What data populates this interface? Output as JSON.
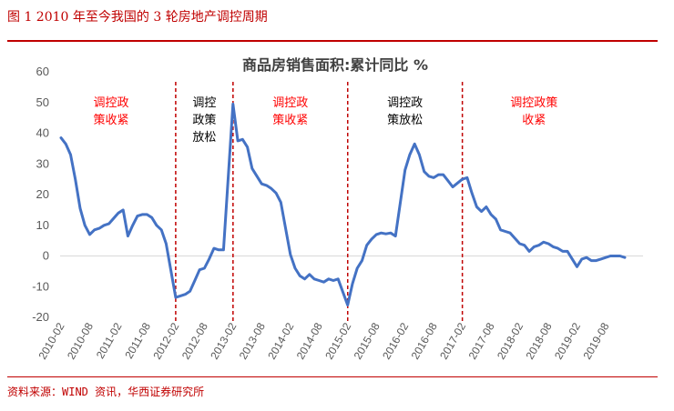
{
  "caption": "图 1   2010 年至今我国的 3 轮房地产调控周期",
  "source": "资料来源：WIND 资讯，华西证券研究所",
  "colors": {
    "line": "#4472c4",
    "accent": "#c00000",
    "tighten": "#ff0000",
    "loosen": "#000000"
  },
  "chart_data": {
    "type": "line",
    "title": "商品房销售面积:累计同比 %",
    "ylim": [
      -20,
      60
    ],
    "yticks": [
      60,
      50,
      40,
      30,
      20,
      10,
      0,
      -10,
      -20
    ],
    "x_tick_labels": [
      "2010-02",
      "2010-08",
      "2011-02",
      "2011-08",
      "2012-02",
      "2012-08",
      "2013-02",
      "2013-08",
      "2014-02",
      "2014-08",
      "2015-02",
      "2015-08",
      "2016-02",
      "2016-08",
      "2017-02",
      "2017-08",
      "2018-02",
      "2018-08",
      "2019-02",
      "2019-08"
    ],
    "grid": false,
    "series": [
      {
        "values": [
          {
            "x": "2010-02",
            "y": 38.5
          },
          {
            "x": "2010-03",
            "y": 36.5
          },
          {
            "x": "2010-04",
            "y": 33.0
          },
          {
            "x": "2010-05",
            "y": 25.0
          },
          {
            "x": "2010-06",
            "y": 15.5
          },
          {
            "x": "2010-07",
            "y": 10.0
          },
          {
            "x": "2010-08",
            "y": 7.0
          },
          {
            "x": "2010-09",
            "y": 8.5
          },
          {
            "x": "2010-10",
            "y": 9.0
          },
          {
            "x": "2010-11",
            "y": 10.0
          },
          {
            "x": "2010-12",
            "y": 10.5
          },
          {
            "x": "2011-02",
            "y": 14.0
          },
          {
            "x": "2011-03",
            "y": 15.0
          },
          {
            "x": "2011-04",
            "y": 6.5
          },
          {
            "x": "2011-05",
            "y": 10.0
          },
          {
            "x": "2011-06",
            "y": 13.0
          },
          {
            "x": "2011-07",
            "y": 13.5
          },
          {
            "x": "2011-08",
            "y": 13.5
          },
          {
            "x": "2011-09",
            "y": 12.5
          },
          {
            "x": "2011-10",
            "y": 10.0
          },
          {
            "x": "2011-11",
            "y": 8.5
          },
          {
            "x": "2011-12",
            "y": 4.0
          },
          {
            "x": "2012-02",
            "y": -13.5
          },
          {
            "x": "2012-03",
            "y": -13.0
          },
          {
            "x": "2012-04",
            "y": -12.5
          },
          {
            "x": "2012-05",
            "y": -11.5
          },
          {
            "x": "2012-06",
            "y": -8.0
          },
          {
            "x": "2012-07",
            "y": -4.5
          },
          {
            "x": "2012-08",
            "y": -4.0
          },
          {
            "x": "2012-09",
            "y": -1.0
          },
          {
            "x": "2012-10",
            "y": 2.5
          },
          {
            "x": "2012-11",
            "y": 2.0
          },
          {
            "x": "2012-12",
            "y": 2.0
          },
          {
            "x": "2013-02",
            "y": 49.5
          },
          {
            "x": "2013-03",
            "y": 37.5
          },
          {
            "x": "2013-04",
            "y": 38.0
          },
          {
            "x": "2013-05",
            "y": 35.5
          },
          {
            "x": "2013-06",
            "y": 28.5
          },
          {
            "x": "2013-07",
            "y": 26.0
          },
          {
            "x": "2013-08",
            "y": 23.5
          },
          {
            "x": "2013-09",
            "y": 23.0
          },
          {
            "x": "2013-10",
            "y": 22.0
          },
          {
            "x": "2013-11",
            "y": 20.5
          },
          {
            "x": "2013-12",
            "y": 17.5
          },
          {
            "x": "2014-02",
            "y": 0.5
          },
          {
            "x": "2014-03",
            "y": -4.0
          },
          {
            "x": "2014-04",
            "y": -6.5
          },
          {
            "x": "2014-05",
            "y": -7.5
          },
          {
            "x": "2014-06",
            "y": -6.0
          },
          {
            "x": "2014-07",
            "y": -7.5
          },
          {
            "x": "2014-08",
            "y": -8.0
          },
          {
            "x": "2014-09",
            "y": -8.5
          },
          {
            "x": "2014-10",
            "y": -7.5
          },
          {
            "x": "2014-11",
            "y": -8.0
          },
          {
            "x": "2014-12",
            "y": -7.5
          },
          {
            "x": "2015-02",
            "y": -16.0
          },
          {
            "x": "2015-03",
            "y": -9.0
          },
          {
            "x": "2015-04",
            "y": -4.0
          },
          {
            "x": "2015-05",
            "y": -1.5
          },
          {
            "x": "2015-06",
            "y": 3.5
          },
          {
            "x": "2015-07",
            "y": 5.5
          },
          {
            "x": "2015-08",
            "y": 7.0
          },
          {
            "x": "2015-09",
            "y": 7.5
          },
          {
            "x": "2015-10",
            "y": 7.2
          },
          {
            "x": "2015-11",
            "y": 7.5
          },
          {
            "x": "2015-12",
            "y": 6.5
          },
          {
            "x": "2016-02",
            "y": 28.0
          },
          {
            "x": "2016-03",
            "y": 33.0
          },
          {
            "x": "2016-04",
            "y": 36.5
          },
          {
            "x": "2016-05",
            "y": 33.0
          },
          {
            "x": "2016-06",
            "y": 27.5
          },
          {
            "x": "2016-07",
            "y": 26.0
          },
          {
            "x": "2016-08",
            "y": 25.5
          },
          {
            "x": "2016-09",
            "y": 26.5
          },
          {
            "x": "2016-10",
            "y": 26.5
          },
          {
            "x": "2016-11",
            "y": 24.5
          },
          {
            "x": "2016-12",
            "y": 22.5
          },
          {
            "x": "2017-02",
            "y": 25.0
          },
          {
            "x": "2017-03",
            "y": 25.5
          },
          {
            "x": "2017-04",
            "y": 20.5
          },
          {
            "x": "2017-05",
            "y": 16.0
          },
          {
            "x": "2017-06",
            "y": 14.5
          },
          {
            "x": "2017-07",
            "y": 16.0
          },
          {
            "x": "2017-08",
            "y": 13.5
          },
          {
            "x": "2017-09",
            "y": 12.0
          },
          {
            "x": "2017-10",
            "y": 8.5
          },
          {
            "x": "2017-11",
            "y": 8.0
          },
          {
            "x": "2017-12",
            "y": 7.5
          },
          {
            "x": "2018-02",
            "y": 4.0
          },
          {
            "x": "2018-03",
            "y": 3.5
          },
          {
            "x": "2018-04",
            "y": 1.5
          },
          {
            "x": "2018-05",
            "y": 3.0
          },
          {
            "x": "2018-06",
            "y": 3.5
          },
          {
            "x": "2018-07",
            "y": 4.5
          },
          {
            "x": "2018-08",
            "y": 4.0
          },
          {
            "x": "2018-09",
            "y": 3.0
          },
          {
            "x": "2018-10",
            "y": 2.5
          },
          {
            "x": "2018-11",
            "y": 1.5
          },
          {
            "x": "2018-12",
            "y": 1.5
          },
          {
            "x": "2019-02",
            "y": -3.5
          },
          {
            "x": "2019-03",
            "y": -1.0
          },
          {
            "x": "2019-04",
            "y": -0.5
          },
          {
            "x": "2019-05",
            "y": -1.5
          },
          {
            "x": "2019-06",
            "y": -1.5
          },
          {
            "x": "2019-07",
            "y": -1.0
          },
          {
            "x": "2019-08",
            "y": -0.5
          },
          {
            "x": "2019-09",
            "y": 0.0
          },
          {
            "x": "2019-10",
            "y": 0.0
          },
          {
            "x": "2019-11",
            "y": 0.0
          },
          {
            "x": "2019-12",
            "y": -0.5
          }
        ]
      }
    ],
    "boundaries": [
      "2012-02",
      "2013-02",
      "2015-02",
      "2017-02"
    ],
    "annotations": [
      {
        "lines": [
          "调控政",
          "策收紧"
        ],
        "phase": "tighten"
      },
      {
        "lines": [
          "调控",
          "政策",
          "放松"
        ],
        "phase": "loosen"
      },
      {
        "lines": [
          "调控政",
          "策收紧"
        ],
        "phase": "tighten"
      },
      {
        "lines": [
          "调控政",
          "策放松"
        ],
        "phase": "loosen"
      },
      {
        "lines": [
          "调控政策",
          "收紧"
        ],
        "phase": "tighten"
      }
    ]
  }
}
